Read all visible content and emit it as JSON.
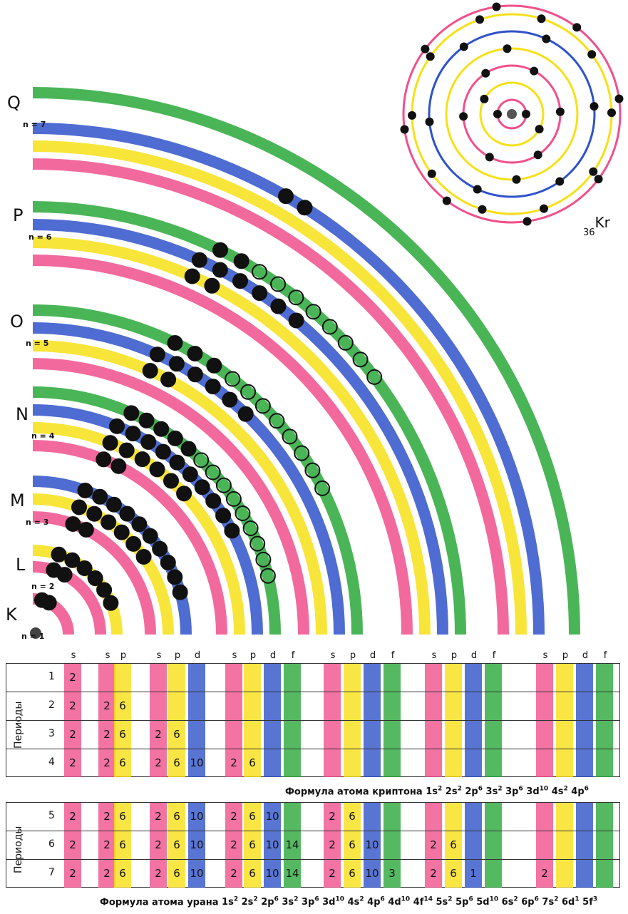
{
  "shells": [
    {
      "letter": "K",
      "n": "n = 1"
    },
    {
      "letter": "L",
      "n": "n = 2"
    },
    {
      "letter": "M",
      "n": "n = 3"
    },
    {
      "letter": "N",
      "n": "n = 4"
    },
    {
      "letter": "O",
      "n": "n = 5"
    },
    {
      "letter": "P",
      "n": "n = 6"
    },
    {
      "letter": "Q",
      "n": "n = 7"
    }
  ],
  "element": {
    "z": "36",
    "symbol": "Kr"
  },
  "colors": {
    "s": "#f0508c",
    "p": "#f7e017",
    "d": "#2f52c9",
    "f": "#2aa83a"
  },
  "table1": {
    "periods_title": "Периоды",
    "sublevels": [
      "s",
      "s",
      "p",
      "s",
      "p",
      "d",
      "s",
      "p",
      "d",
      "f",
      "s",
      "p",
      "d",
      "f",
      "s",
      "p",
      "d",
      "f",
      "s",
      "p",
      "d",
      "f"
    ],
    "rows": [
      {
        "period": "1",
        "values": [
          "2"
        ]
      },
      {
        "period": "2",
        "values": [
          "2",
          "2",
          "6"
        ]
      },
      {
        "period": "3",
        "values": [
          "2",
          "2",
          "6",
          "2",
          "6"
        ]
      },
      {
        "period": "4",
        "values": [
          "2",
          "2",
          "6",
          "2",
          "6",
          "10",
          "2",
          "6"
        ]
      }
    ],
    "formula_label": "Формула атома криптона",
    "formula": [
      [
        "1s",
        "2"
      ],
      [
        "2s",
        "2"
      ],
      [
        "2p",
        "6"
      ],
      [
        "3s",
        "2"
      ],
      [
        "3p",
        "6"
      ],
      [
        "3d",
        "10"
      ],
      [
        "4s",
        "2"
      ],
      [
        "4p",
        "6"
      ]
    ]
  },
  "table2": {
    "periods_title": "Периоды",
    "rows": [
      {
        "period": "5",
        "values": [
          "2",
          "2",
          "6",
          "2",
          "6",
          "10",
          "2",
          "6",
          "10",
          "",
          "2",
          "6"
        ]
      },
      {
        "period": "6",
        "values": [
          "2",
          "2",
          "6",
          "2",
          "6",
          "10",
          "2",
          "6",
          "10",
          "14",
          "2",
          "6",
          "10",
          "",
          "2",
          "6"
        ]
      },
      {
        "period": "7",
        "values": [
          "2",
          "2",
          "6",
          "2",
          "6",
          "10",
          "2",
          "6",
          "10",
          "14",
          "2",
          "6",
          "10",
          "3",
          "2",
          "6",
          "1",
          "",
          "2"
        ]
      }
    ],
    "formula_label": "Формула атома урана",
    "formula": [
      [
        "1s",
        "2"
      ],
      [
        "2s",
        "2"
      ],
      [
        "2p",
        "6"
      ],
      [
        "3s",
        "2"
      ],
      [
        "3p",
        "6"
      ],
      [
        "3d",
        "10"
      ],
      [
        "4s",
        "2"
      ],
      [
        "4p",
        "6"
      ],
      [
        "4d",
        "10"
      ],
      [
        "4f",
        "14"
      ],
      [
        "5s",
        "2"
      ],
      [
        "5p",
        "6"
      ],
      [
        "5d",
        "10"
      ],
      [
        "6s",
        "2"
      ],
      [
        "6p",
        "6"
      ],
      [
        "7s",
        "2"
      ],
      [
        "6d",
        "1"
      ],
      [
        "5f",
        "3"
      ]
    ]
  }
}
